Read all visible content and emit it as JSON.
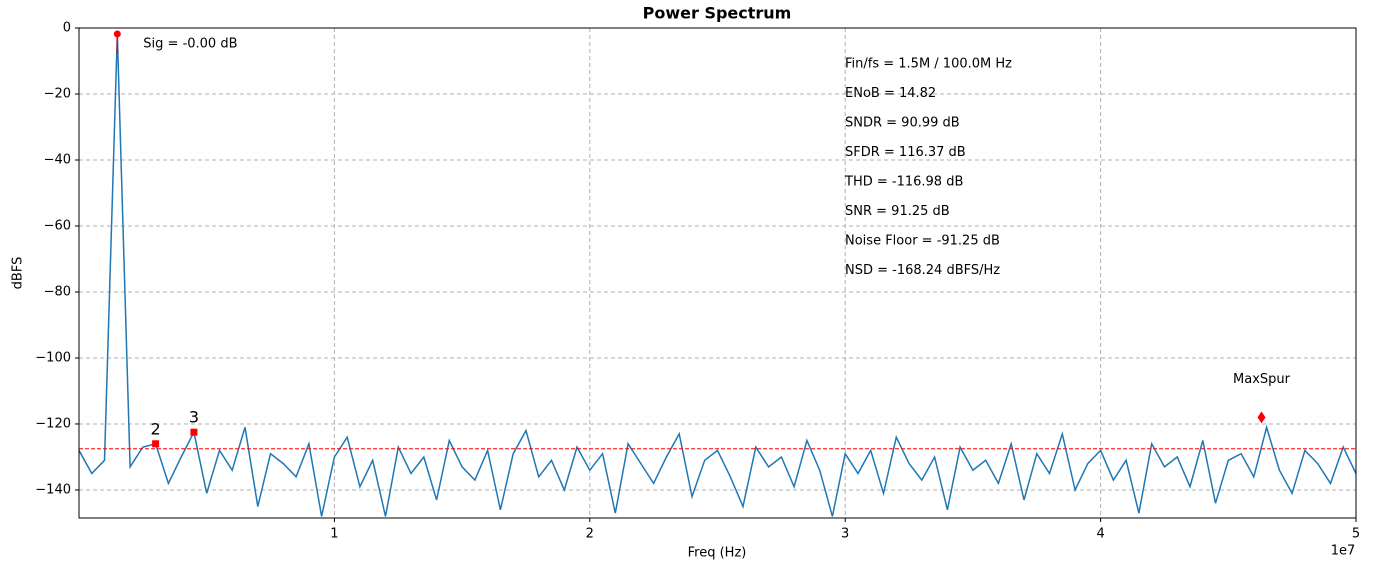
{
  "chart_data": {
    "type": "line",
    "title": "Power Spectrum",
    "x_label": "Freq (Hz)",
    "y_label": "dBFS",
    "x_offset_label": "1e7",
    "xlim": [
      0,
      50000000
    ],
    "ylim": [
      -148.5,
      0
    ],
    "xticks": [
      {
        "value": 10000000,
        "label": "1"
      },
      {
        "value": 20000000,
        "label": "2"
      },
      {
        "value": 30000000,
        "label": "3"
      },
      {
        "value": 40000000,
        "label": "4"
      },
      {
        "value": 50000000,
        "label": "5"
      }
    ],
    "yticks": [
      0,
      {
        "value": -20,
        "label": "−20"
      },
      {
        "value": -40,
        "label": "−40"
      },
      {
        "value": -60,
        "label": "−60"
      },
      {
        "value": -80,
        "label": "−80"
      },
      {
        "value": -100,
        "label": "−100"
      },
      {
        "value": -120,
        "label": "−120"
      },
      {
        "value": -140,
        "label": "−140"
      }
    ],
    "grid": true,
    "color": "#1f77b4",
    "x": [
      0,
      500000,
      1000000,
      1500000,
      2000000,
      2500000,
      3000000,
      3500000,
      4000000,
      4500000,
      5000000,
      5500000,
      6000000,
      6500000,
      7000000,
      7500000,
      8000000,
      8500000,
      9000000,
      9500000,
      10000000,
      10500000,
      11000000,
      11500000,
      12000000,
      12500000,
      13000000,
      13500000,
      14000000,
      14500000,
      15000000,
      15500000,
      16000000,
      16500000,
      17000000,
      17500000,
      18000000,
      18500000,
      19000000,
      19500000,
      20000000,
      20500000,
      21000000,
      21500000,
      22000000,
      22500000,
      23000000,
      23500000,
      24000000,
      24500000,
      25000000,
      25500000,
      26000000,
      26500000,
      27000000,
      27500000,
      28000000,
      28500000,
      29000000,
      29500000,
      30000000,
      30500000,
      31000000,
      31500000,
      32000000,
      32500000,
      33000000,
      33500000,
      34000000,
      34500000,
      35000000,
      35500000,
      36000000,
      36500000,
      37000000,
      37500000,
      38000000,
      38500000,
      39000000,
      39500000,
      40000000,
      40500000,
      41000000,
      41500000,
      42000000,
      42500000,
      43000000,
      43500000,
      44000000,
      44500000,
      45000000,
      45500000,
      46000000,
      46500000,
      47000000,
      47500000,
      48000000,
      48500000,
      49000000,
      49500000,
      50000000
    ],
    "values": [
      -128,
      -135,
      -131,
      -1.8,
      -133,
      -127,
      -126,
      -138,
      -130,
      -122.5,
      -141,
      -128,
      -134,
      -121,
      -145,
      -129,
      -132,
      -136,
      -126,
      -148,
      -130,
      -124,
      -139,
      -131,
      -148,
      -127,
      -135,
      -130,
      -143,
      -125,
      -133,
      -137,
      -128,
      -146,
      -129,
      -122,
      -136,
      -131,
      -140,
      -127,
      -134,
      -129,
      -147,
      -126,
      -132,
      -138,
      -130,
      -123,
      -142,
      -131,
      -128,
      -136,
      -145,
      -127,
      -133,
      -130,
      -139,
      -125,
      -134,
      -148,
      -129,
      -135,
      -128,
      -141,
      -124,
      -132,
      -137,
      -130,
      -146,
      -127,
      -134,
      -131,
      -138,
      -126,
      -143,
      -129,
      -135,
      -123,
      -140,
      -132,
      -128,
      -137,
      -131,
      -147,
      -126,
      -133,
      -130,
      -139,
      -125,
      -144,
      -131,
      -129,
      -136,
      -121,
      -134,
      -141,
      -128,
      -132,
      -138,
      -127,
      -135
    ],
    "marker_color": "#ff0000",
    "signal": {
      "x": 1500000,
      "value": -1.8,
      "label": "Sig = -0.00 dB"
    },
    "harmonics": [
      {
        "label": "2",
        "x": 3000000,
        "value": -126
      },
      {
        "label": "3",
        "x": 4500000,
        "value": -122.5
      }
    ],
    "max_spur": {
      "label": "MaxSpur",
      "x": 46300000,
      "value": -118
    },
    "noise_floor": -127.5,
    "metrics": [
      "Fin/fs = 1.5M / 100.0M Hz",
      "ENoB = 14.82",
      "SNDR = 90.99 dB",
      "SFDR = 116.37 dB",
      "THD = -116.98 dB",
      "SNR = 91.25 dB",
      "Noise Floor = -91.25 dB",
      "NSD = -168.24 dBFS/Hz"
    ]
  }
}
